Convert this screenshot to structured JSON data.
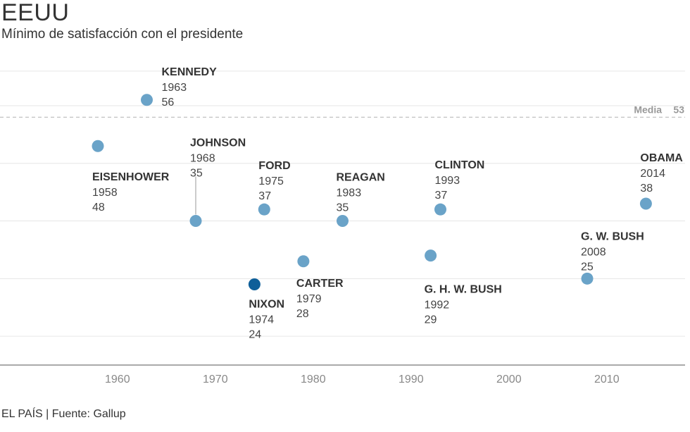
{
  "title": "EEUU",
  "subtitle": "Mínimo de satisfacción con el presidente",
  "source": "EL PAÍS | Fuente: Gallup",
  "chart_data": {
    "type": "scatter",
    "title": "EEUU",
    "subtitle": "Mínimo de satisfacción con el presidente",
    "xlabel": "",
    "ylabel": "",
    "xlim": [
      1948,
      2018
    ],
    "ylim": [
      10,
      66
    ],
    "x_ticks": [
      1960,
      1970,
      1980,
      1990,
      2000,
      2010
    ],
    "grid": true,
    "mean": {
      "label": "Media",
      "value": 53
    },
    "colors": {
      "point": "#6aa3c8",
      "highlight": "#0f5f99",
      "grid": "#e6e6e6",
      "axis": "#555555",
      "mean": "#bbbbbb"
    },
    "points": [
      {
        "name": "EISENHOWER",
        "year": 1958,
        "value": 48
      },
      {
        "name": "KENNEDY",
        "year": 1963,
        "value": 56
      },
      {
        "name": "JOHNSON",
        "year": 1968,
        "value": 35
      },
      {
        "name": "NIXON",
        "year": 1974,
        "value": 24,
        "highlight": true
      },
      {
        "name": "FORD",
        "year": 1975,
        "value": 37
      },
      {
        "name": "CARTER",
        "year": 1979,
        "value": 28
      },
      {
        "name": "REAGAN",
        "year": 1983,
        "value": 35
      },
      {
        "name": "G. H. W. BUSH",
        "year": 1992,
        "value": 29
      },
      {
        "name": "CLINTON",
        "year": 1993,
        "value": 37
      },
      {
        "name": "G. W. BUSH",
        "year": 2008,
        "value": 25
      },
      {
        "name": "OBAMA",
        "year": 2014,
        "value": 38
      }
    ]
  }
}
